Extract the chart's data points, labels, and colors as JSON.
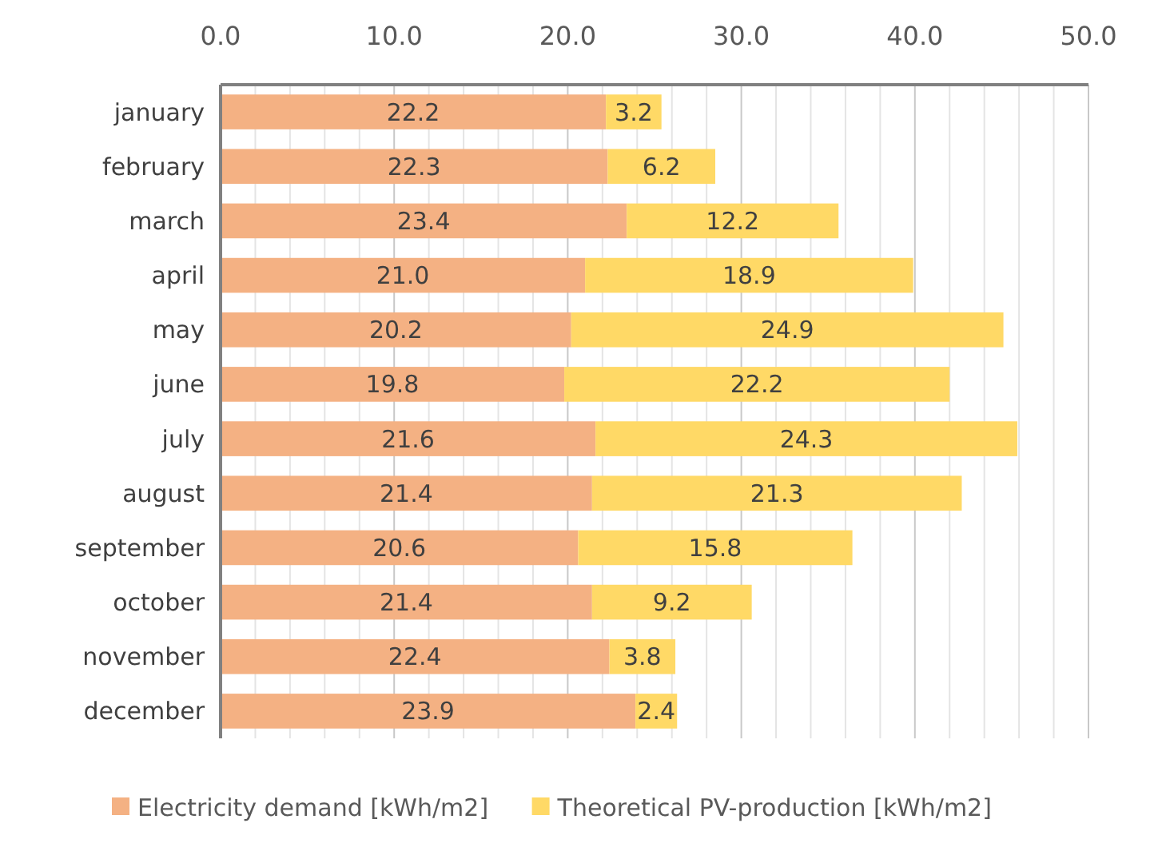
{
  "chart_data": {
    "type": "bar",
    "orientation": "horizontal",
    "stacked": true,
    "categories": [
      "january",
      "february",
      "march",
      "april",
      "may",
      "june",
      "july",
      "august",
      "september",
      "october",
      "november",
      "december"
    ],
    "series": [
      {
        "name": "Electricity demand [kWh/m2]",
        "color": "#f4b183",
        "values": [
          22.2,
          22.3,
          23.4,
          21.0,
          20.2,
          19.8,
          21.6,
          21.4,
          20.6,
          21.4,
          22.4,
          23.9
        ],
        "value_labels": [
          "22.2",
          "22.3",
          "23.4",
          "21.0",
          "20.2",
          "19.8",
          "21.6",
          "21.4",
          "20.6",
          "21.4",
          "22.4",
          "23.9"
        ]
      },
      {
        "name": "Theoretical PV-production [kWh/m2]",
        "color": "#ffd966",
        "values": [
          3.2,
          6.2,
          12.2,
          18.9,
          24.9,
          22.2,
          24.3,
          21.3,
          15.8,
          9.2,
          3.8,
          2.4
        ],
        "value_labels": [
          "3.2",
          "6.2",
          "12.2",
          "18.9",
          "24.9",
          "22.2",
          "24.3",
          "21.3",
          "15.8",
          "9.2",
          "3.8",
          "2.4"
        ]
      }
    ],
    "xlim": [
      0,
      50
    ],
    "xticks": [
      {
        "value": 0,
        "label": "0.0"
      },
      {
        "value": 2,
        "label": null
      },
      {
        "value": 4,
        "label": null
      },
      {
        "value": 6,
        "label": null
      },
      {
        "value": 8,
        "label": null
      },
      {
        "value": 10,
        "label": "10.0"
      },
      {
        "value": 12,
        "label": null
      },
      {
        "value": 14,
        "label": null
      },
      {
        "value": 16,
        "label": null
      },
      {
        "value": 18,
        "label": null
      },
      {
        "value": 20,
        "label": "20.0"
      },
      {
        "value": 22,
        "label": null
      },
      {
        "value": 24,
        "label": null
      },
      {
        "value": 26,
        "label": null
      },
      {
        "value": 28,
        "label": null
      },
      {
        "value": 30,
        "label": "30.0"
      },
      {
        "value": 32,
        "label": null
      },
      {
        "value": 34,
        "label": null
      },
      {
        "value": 36,
        "label": null
      },
      {
        "value": 38,
        "label": null
      },
      {
        "value": 40,
        "label": "40.0"
      },
      {
        "value": 42,
        "label": null
      },
      {
        "value": 44,
        "label": null
      },
      {
        "value": 46,
        "label": null
      },
      {
        "value": 48,
        "label": null
      },
      {
        "value": 50,
        "label": "50.0"
      }
    ],
    "grid": "x",
    "legend": "bottom"
  }
}
